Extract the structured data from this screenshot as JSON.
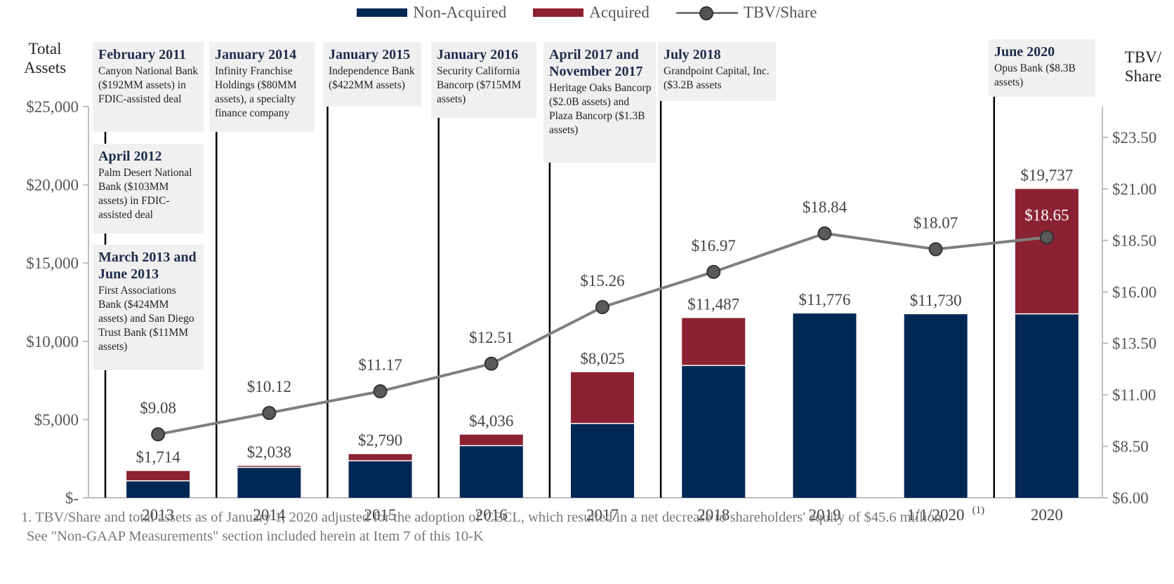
{
  "legend": {
    "non_acquired": "Non-Acquired",
    "acquired": "Acquired",
    "tbv": "TBV/Share"
  },
  "colors": {
    "non_acquired": "#002855",
    "acquired": "#8b2232",
    "tbv_line": "#7f7f7f",
    "tbv_marker": "#5a5a5a"
  },
  "axis": {
    "left_title": "Total\nAssets",
    "right_title": "TBV/\nShare"
  },
  "callouts": [
    {
      "title": "February 2011",
      "body": "Canyon National Bank ($192MM assets) in FDIC-assisted deal"
    },
    {
      "title": "April 2012",
      "body": "Palm Desert National Bank ($103MM assets) in FDIC-assisted deal"
    },
    {
      "title": "March 2013 and June 2013",
      "body": "First Associations Bank ($424MM assets) and San Diego Trust Bank ($11MM assets)"
    },
    {
      "title": "January 2014",
      "body": "Infinity Franchise Holdings ($80MM assets), a specialty finance company"
    },
    {
      "title": "January 2015",
      "body": "Independence Bank ($422MM assets)"
    },
    {
      "title": "January 2016",
      "body": "Security California Bancorp ($715MM assets)"
    },
    {
      "title": "April 2017 and November 2017",
      "body": "Heritage Oaks Bancorp ($2.0B assets) and Plaza Bancorp ($1.3B assets)"
    },
    {
      "title": "July 2018",
      "body": "Grandpoint Capital, Inc. ($3.2B assets"
    },
    {
      "title": "June 2020",
      "body": "Opus Bank ($8.3B assets)"
    }
  ],
  "footnote": {
    "line1": "1. TBV/Share and total assets as of January 1, 2020 adjusted for the adoption of CECL, which resulted in a net decrease to shareholders' equity of $45.6 million.",
    "line2": "See \"Non-GAAP Measurements\" section included herein at Item 7 of this 10-K"
  },
  "chart_data": {
    "type": "bar",
    "stacked": true,
    "categories": [
      "2013",
      "2014",
      "2015",
      "2016",
      "2017",
      "2018",
      "2019",
      "1/1/2020",
      "2020"
    ],
    "category_superscripts": [
      "",
      "",
      "",
      "",
      "",
      "",
      "",
      "(1)",
      ""
    ],
    "series": [
      {
        "name": "Non-Acquired",
        "values": [
          1050,
          1910,
          2330,
          3300,
          4710,
          8420,
          11776,
          11730,
          11720
        ]
      },
      {
        "name": "Acquired",
        "values": [
          664,
          128,
          460,
          736,
          3315,
          3067,
          0,
          0,
          8017
        ]
      }
    ],
    "totals": [
      1714,
      2038,
      2790,
      4036,
      8025,
      11487,
      11776,
      11730,
      19737
    ],
    "total_labels": [
      "$1,714",
      "$2,038",
      "$2,790",
      "$4,036",
      "$8,025",
      "$11,487",
      "$11,776",
      "$11,730",
      "$19,737"
    ],
    "line_series": {
      "name": "TBV/Share",
      "axis": "right",
      "values": [
        9.08,
        10.12,
        11.17,
        12.51,
        15.26,
        16.97,
        18.84,
        18.07,
        18.65
      ],
      "labels": [
        "$9.08",
        "$10.12",
        "$11.17",
        "$12.51",
        "$15.26",
        "$16.97",
        "$18.84",
        "$18.07",
        "$18.65"
      ]
    },
    "ylim_left": [
      0,
      25000
    ],
    "yticks_left": [
      0,
      5000,
      10000,
      15000,
      20000,
      25000
    ],
    "ytick_labels_left": [
      "$-",
      "$5,000",
      "$10,000",
      "$15,000",
      "$20,000",
      "$25,000"
    ],
    "ylim_right": [
      6.0,
      25.0
    ],
    "yticks_right": [
      6.0,
      8.5,
      11.0,
      13.5,
      16.0,
      18.5,
      21.0,
      23.5
    ],
    "ytick_labels_right": [
      "$6.00",
      "$8.50",
      "$11.00",
      "$13.50",
      "$16.00",
      "$18.50",
      "$21.00",
      "$23.50"
    ],
    "acquisition_marker_categories": [
      "2013",
      "2014",
      "2015",
      "2016",
      "2017",
      "2018",
      "2020"
    ],
    "ylabel_left": "Total Assets",
    "ylabel_right": "TBV/ Share"
  }
}
